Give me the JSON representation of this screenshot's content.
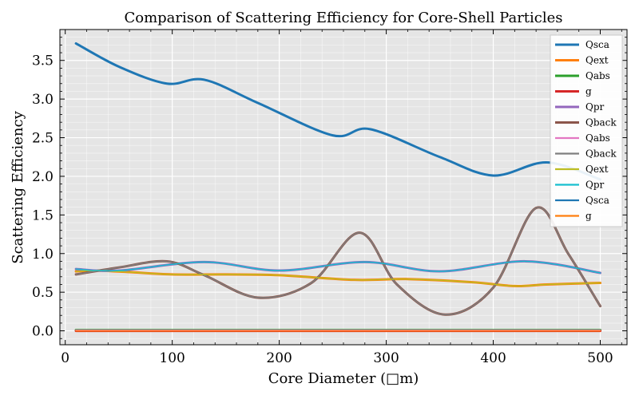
{
  "chart_data": {
    "type": "line",
    "title": "Comparison of Scattering Efficiency for Core-Shell Particles",
    "xlabel": "Core Diameter (□m)",
    "ylabel": "Scattering Efficiency",
    "xlim": [
      -5,
      525
    ],
    "ylim": [
      -0.18,
      3.9
    ],
    "xticks": [
      0,
      100,
      200,
      300,
      400,
      500
    ],
    "yticks": [
      0.0,
      0.5,
      1.0,
      1.5,
      2.0,
      2.5,
      3.0,
      3.5
    ],
    "xtick_labels": [
      "0",
      "100",
      "200",
      "300",
      "400",
      "500"
    ],
    "ytick_labels": [
      "0.0",
      "0.5",
      "1.0",
      "1.5",
      "2.0",
      "2.5",
      "3.0",
      "3.5"
    ],
    "grid": true,
    "legend_position": "top-right",
    "background": "#e5e5e5",
    "series": [
      {
        "name": "Qsca",
        "color": "#1f77b4",
        "width": 3,
        "x": [
          10,
          50,
          95,
          130,
          180,
          250,
          285,
          350,
          400,
          450,
          500
        ],
        "y": [
          3.72,
          3.42,
          3.2,
          3.25,
          2.95,
          2.53,
          2.61,
          2.25,
          2.01,
          2.18,
          1.96
        ]
      },
      {
        "name": "Qext",
        "color": "#ff7f0e",
        "width": 3,
        "x": [
          10,
          30,
          60,
          100,
          150,
          200,
          270,
          320,
          380,
          420,
          450,
          500
        ],
        "y": [
          0.77,
          0.78,
          0.76,
          0.73,
          0.73,
          0.72,
          0.66,
          0.67,
          0.63,
          0.58,
          0.6,
          0.62
        ]
      },
      {
        "name": "Qabs",
        "color": "#2ca02c",
        "width": 3,
        "x": [
          10,
          500
        ],
        "y": [
          0.01,
          0.01
        ]
      },
      {
        "name": "g",
        "color": "#d62728",
        "width": 3,
        "x": [
          10,
          500
        ],
        "y": [
          0.0,
          0.0
        ]
      },
      {
        "name": "Qpr",
        "color": "#9467bd",
        "width": 3,
        "x": [
          10,
          50,
          130,
          200,
          280,
          350,
          430,
          500
        ],
        "y": [
          0.8,
          0.78,
          0.89,
          0.78,
          0.89,
          0.77,
          0.9,
          0.75
        ]
      },
      {
        "name": "Qback",
        "color": "#8c564b",
        "width": 3,
        "x": [
          10,
          50,
          95,
          130,
          180,
          230,
          275,
          310,
          355,
          400,
          440,
          470,
          500
        ],
        "y": [
          0.73,
          0.82,
          0.9,
          0.72,
          0.43,
          0.62,
          1.27,
          0.6,
          0.21,
          0.56,
          1.59,
          1.0,
          0.32
        ]
      },
      {
        "name": "Qabs",
        "color": "#e377c2",
        "width": 1.5,
        "x": [
          10,
          500
        ],
        "y": [
          0.01,
          0.01
        ]
      },
      {
        "name": "Qback",
        "color": "#7f7f7f",
        "width": 1.5,
        "x": [
          10,
          50,
          95,
          130,
          180,
          230,
          275,
          310,
          355,
          400,
          440,
          470,
          500
        ],
        "y": [
          0.73,
          0.82,
          0.9,
          0.72,
          0.43,
          0.62,
          1.27,
          0.6,
          0.21,
          0.56,
          1.59,
          1.0,
          0.32
        ]
      },
      {
        "name": "Qext",
        "color": "#bcbd22",
        "width": 1.5,
        "x": [
          10,
          30,
          60,
          100,
          150,
          200,
          270,
          320,
          380,
          420,
          450,
          500
        ],
        "y": [
          0.77,
          0.78,
          0.76,
          0.73,
          0.73,
          0.72,
          0.66,
          0.67,
          0.63,
          0.58,
          0.6,
          0.62
        ]
      },
      {
        "name": "Qpr",
        "color": "#17becf",
        "width": 1.5,
        "x": [
          10,
          50,
          130,
          200,
          280,
          350,
          430,
          500
        ],
        "y": [
          0.8,
          0.78,
          0.89,
          0.78,
          0.89,
          0.77,
          0.9,
          0.75
        ]
      },
      {
        "name": "Qsca",
        "color": "#1f77b4",
        "width": 1.5,
        "x": [
          10,
          50,
          95,
          130,
          180,
          250,
          285,
          350,
          400,
          450,
          500
        ],
        "y": [
          3.72,
          3.42,
          3.2,
          3.25,
          2.95,
          2.53,
          2.61,
          2.25,
          2.01,
          2.18,
          1.96
        ]
      },
      {
        "name": "g",
        "color": "#ff7f0e",
        "width": 1.5,
        "x": [
          10,
          500
        ],
        "y": [
          0.0,
          0.0
        ]
      }
    ]
  }
}
